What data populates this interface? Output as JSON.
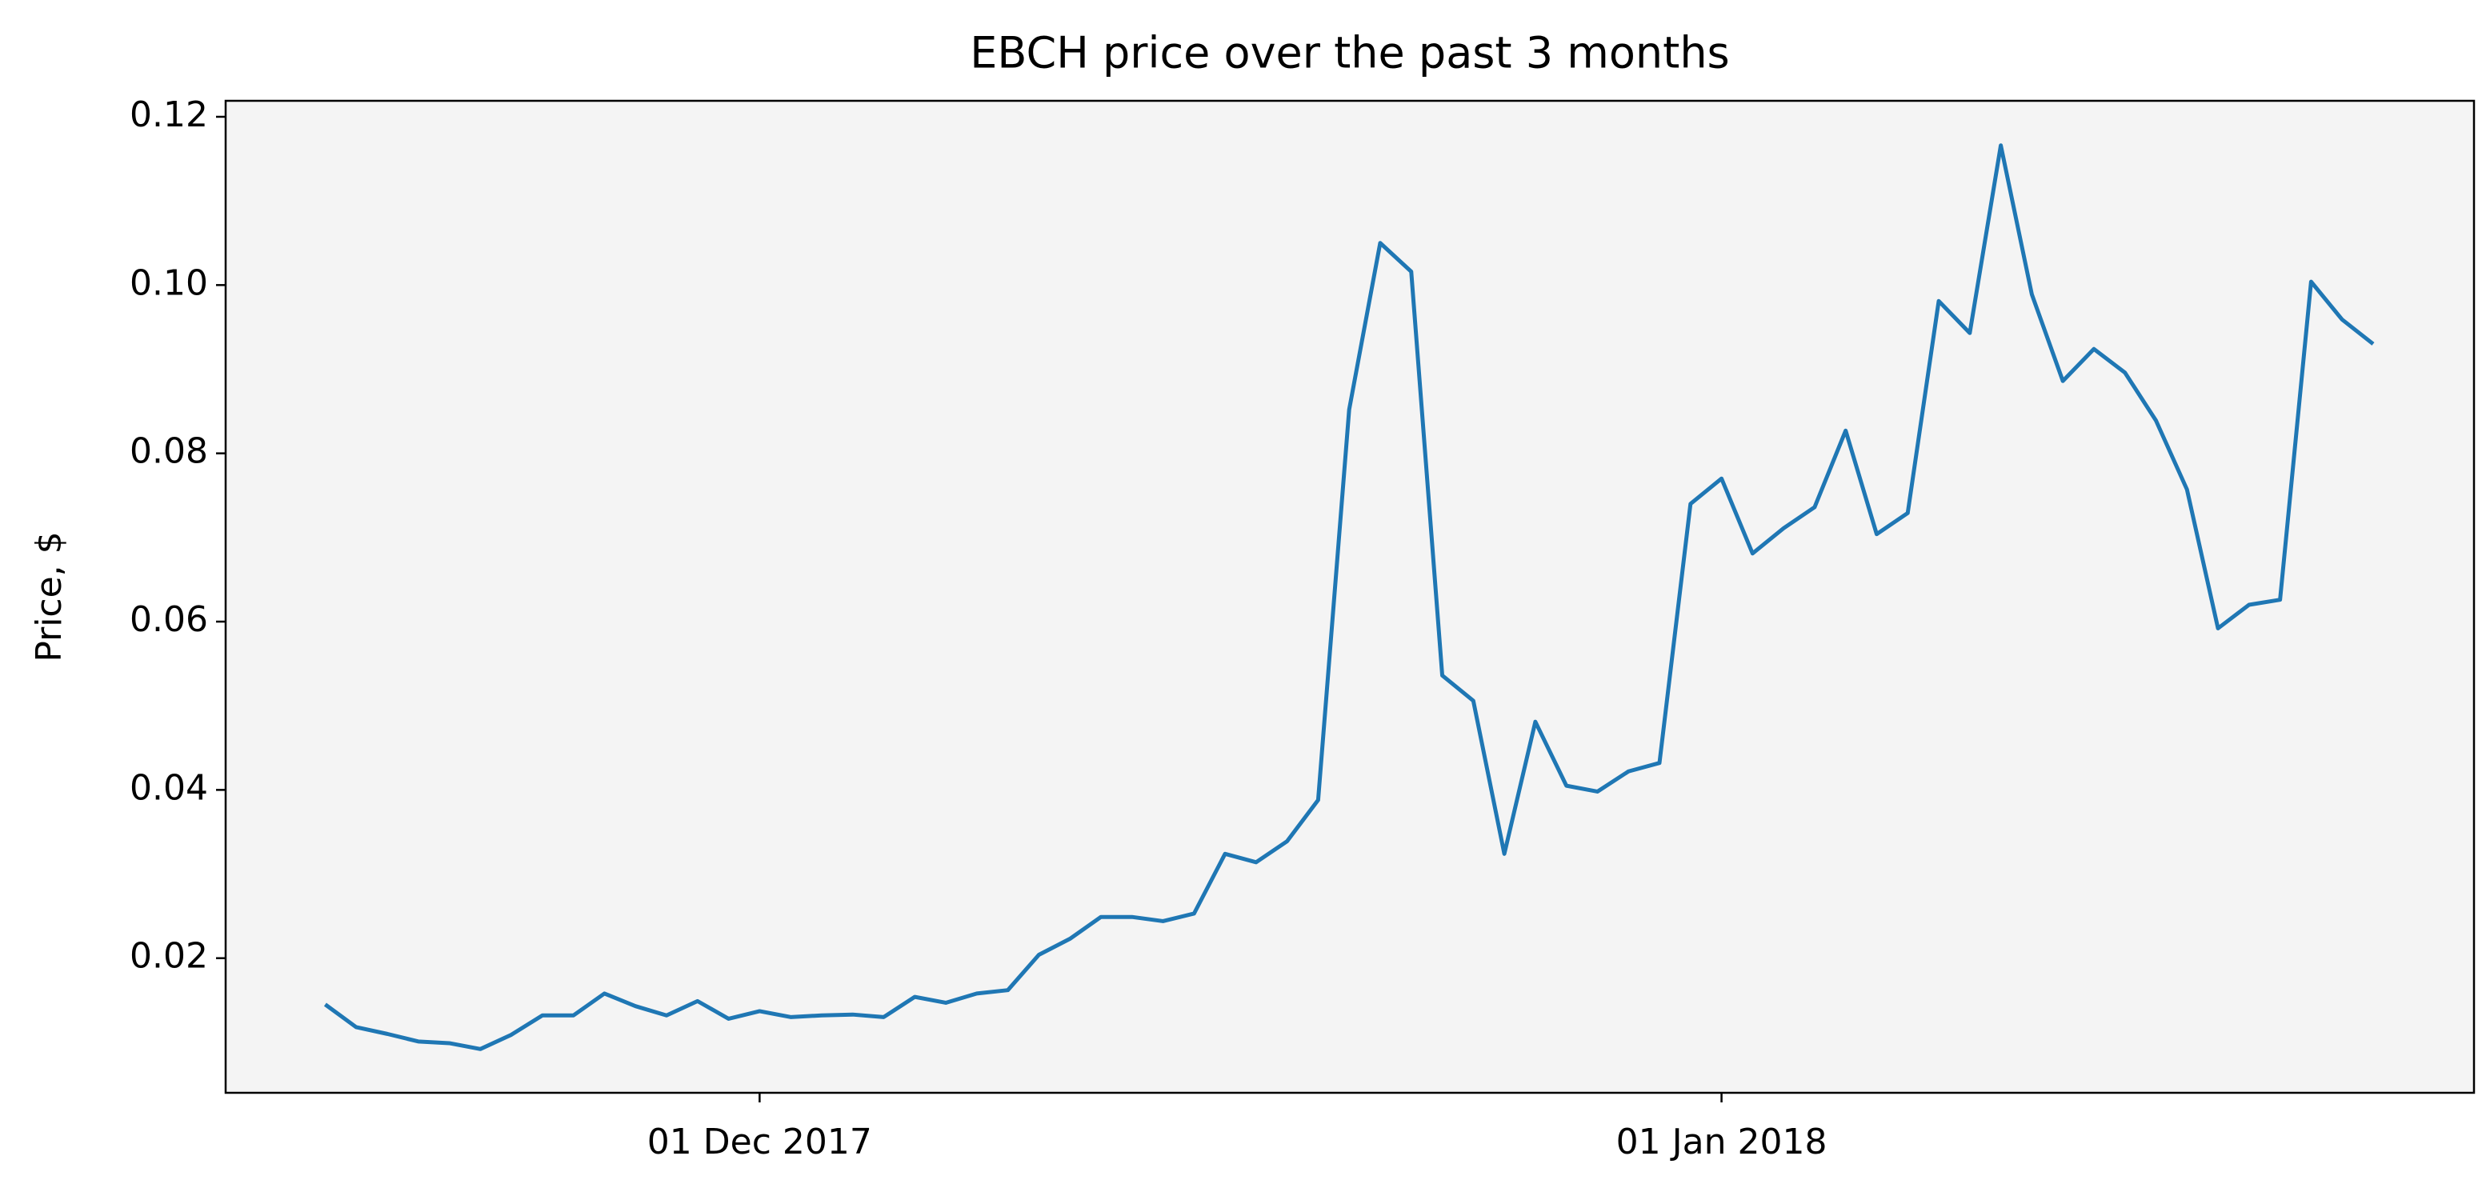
{
  "chart_data": {
    "type": "line",
    "title": "EBCH price over the past 3 months",
    "y_label": "Price, $",
    "color": "#1f77b4",
    "x": [
      "2017-11-17",
      "2017-11-18",
      "2017-11-19",
      "2017-11-20",
      "2017-11-21",
      "2017-11-22",
      "2017-11-23",
      "2017-11-24",
      "2017-11-25",
      "2017-11-26",
      "2017-11-27",
      "2017-11-28",
      "2017-11-29",
      "2017-11-30",
      "2017-12-01",
      "2017-12-02",
      "2017-12-03",
      "2017-12-04",
      "2017-12-05",
      "2017-12-06",
      "2017-12-07",
      "2017-12-08",
      "2017-12-09",
      "2017-12-10",
      "2017-12-11",
      "2017-12-12",
      "2017-12-13",
      "2017-12-14",
      "2017-12-15",
      "2017-12-16",
      "2017-12-17",
      "2017-12-18",
      "2017-12-19",
      "2017-12-20",
      "2017-12-21",
      "2017-12-22",
      "2017-12-23",
      "2017-12-24",
      "2017-12-25",
      "2017-12-26",
      "2017-12-27",
      "2017-12-28",
      "2017-12-29",
      "2017-12-30",
      "2017-12-31",
      "2018-01-01",
      "2018-01-02",
      "2018-01-03",
      "2018-01-04",
      "2018-01-05",
      "2018-01-06",
      "2018-01-07",
      "2018-01-08",
      "2018-01-09",
      "2018-01-10",
      "2018-01-11",
      "2018-01-12",
      "2018-01-13",
      "2018-01-14",
      "2018-01-15",
      "2018-01-16",
      "2018-01-17",
      "2018-01-18",
      "2018-01-19",
      "2018-01-20",
      "2018-01-21",
      "2018-01-22"
    ],
    "values": [
      0.0145,
      0.0118,
      0.011,
      0.0101,
      0.0099,
      0.0092,
      0.0109,
      0.0132,
      0.0132,
      0.0158,
      0.0143,
      0.0132,
      0.0149,
      0.0128,
      0.0137,
      0.013,
      0.0132,
      0.0133,
      0.013,
      0.0154,
      0.0147,
      0.0158,
      0.0162,
      0.0204,
      0.0223,
      0.0249,
      0.0249,
      0.0244,
      0.0253,
      0.0324,
      0.0314,
      0.0339,
      0.0388,
      0.0852,
      0.105,
      0.1016,
      0.0536,
      0.0506,
      0.0324,
      0.0481,
      0.0405,
      0.0398,
      0.0422,
      0.0432,
      0.074,
      0.077,
      0.0681,
      0.0711,
      0.0736,
      0.0827,
      0.0704,
      0.0729,
      0.0981,
      0.0943,
      0.1166,
      0.0989,
      0.0886,
      0.0924,
      0.0896,
      0.0839,
      0.0757,
      0.0592,
      0.062,
      0.0626,
      0.1004,
      0.0959,
      0.093
    ],
    "xlim": [
      "2017-11-13T19:00",
      "2018-01-25T06:00"
    ],
    "xticks": [
      {
        "value": "2017-12-01",
        "label": "01 Dec 2017"
      },
      {
        "value": "2018-01-01",
        "label": "01 Jan 2018"
      }
    ],
    "ylim": [
      0.004,
      0.1219
    ],
    "yticks": [
      {
        "value": 0.02,
        "label": "0.02"
      },
      {
        "value": 0.04,
        "label": "0.04"
      },
      {
        "value": 0.06,
        "label": "0.06"
      },
      {
        "value": 0.08,
        "label": "0.08"
      },
      {
        "value": 0.1,
        "label": "0.10"
      },
      {
        "value": 0.12,
        "label": "0.12"
      }
    ],
    "grid": false
  }
}
